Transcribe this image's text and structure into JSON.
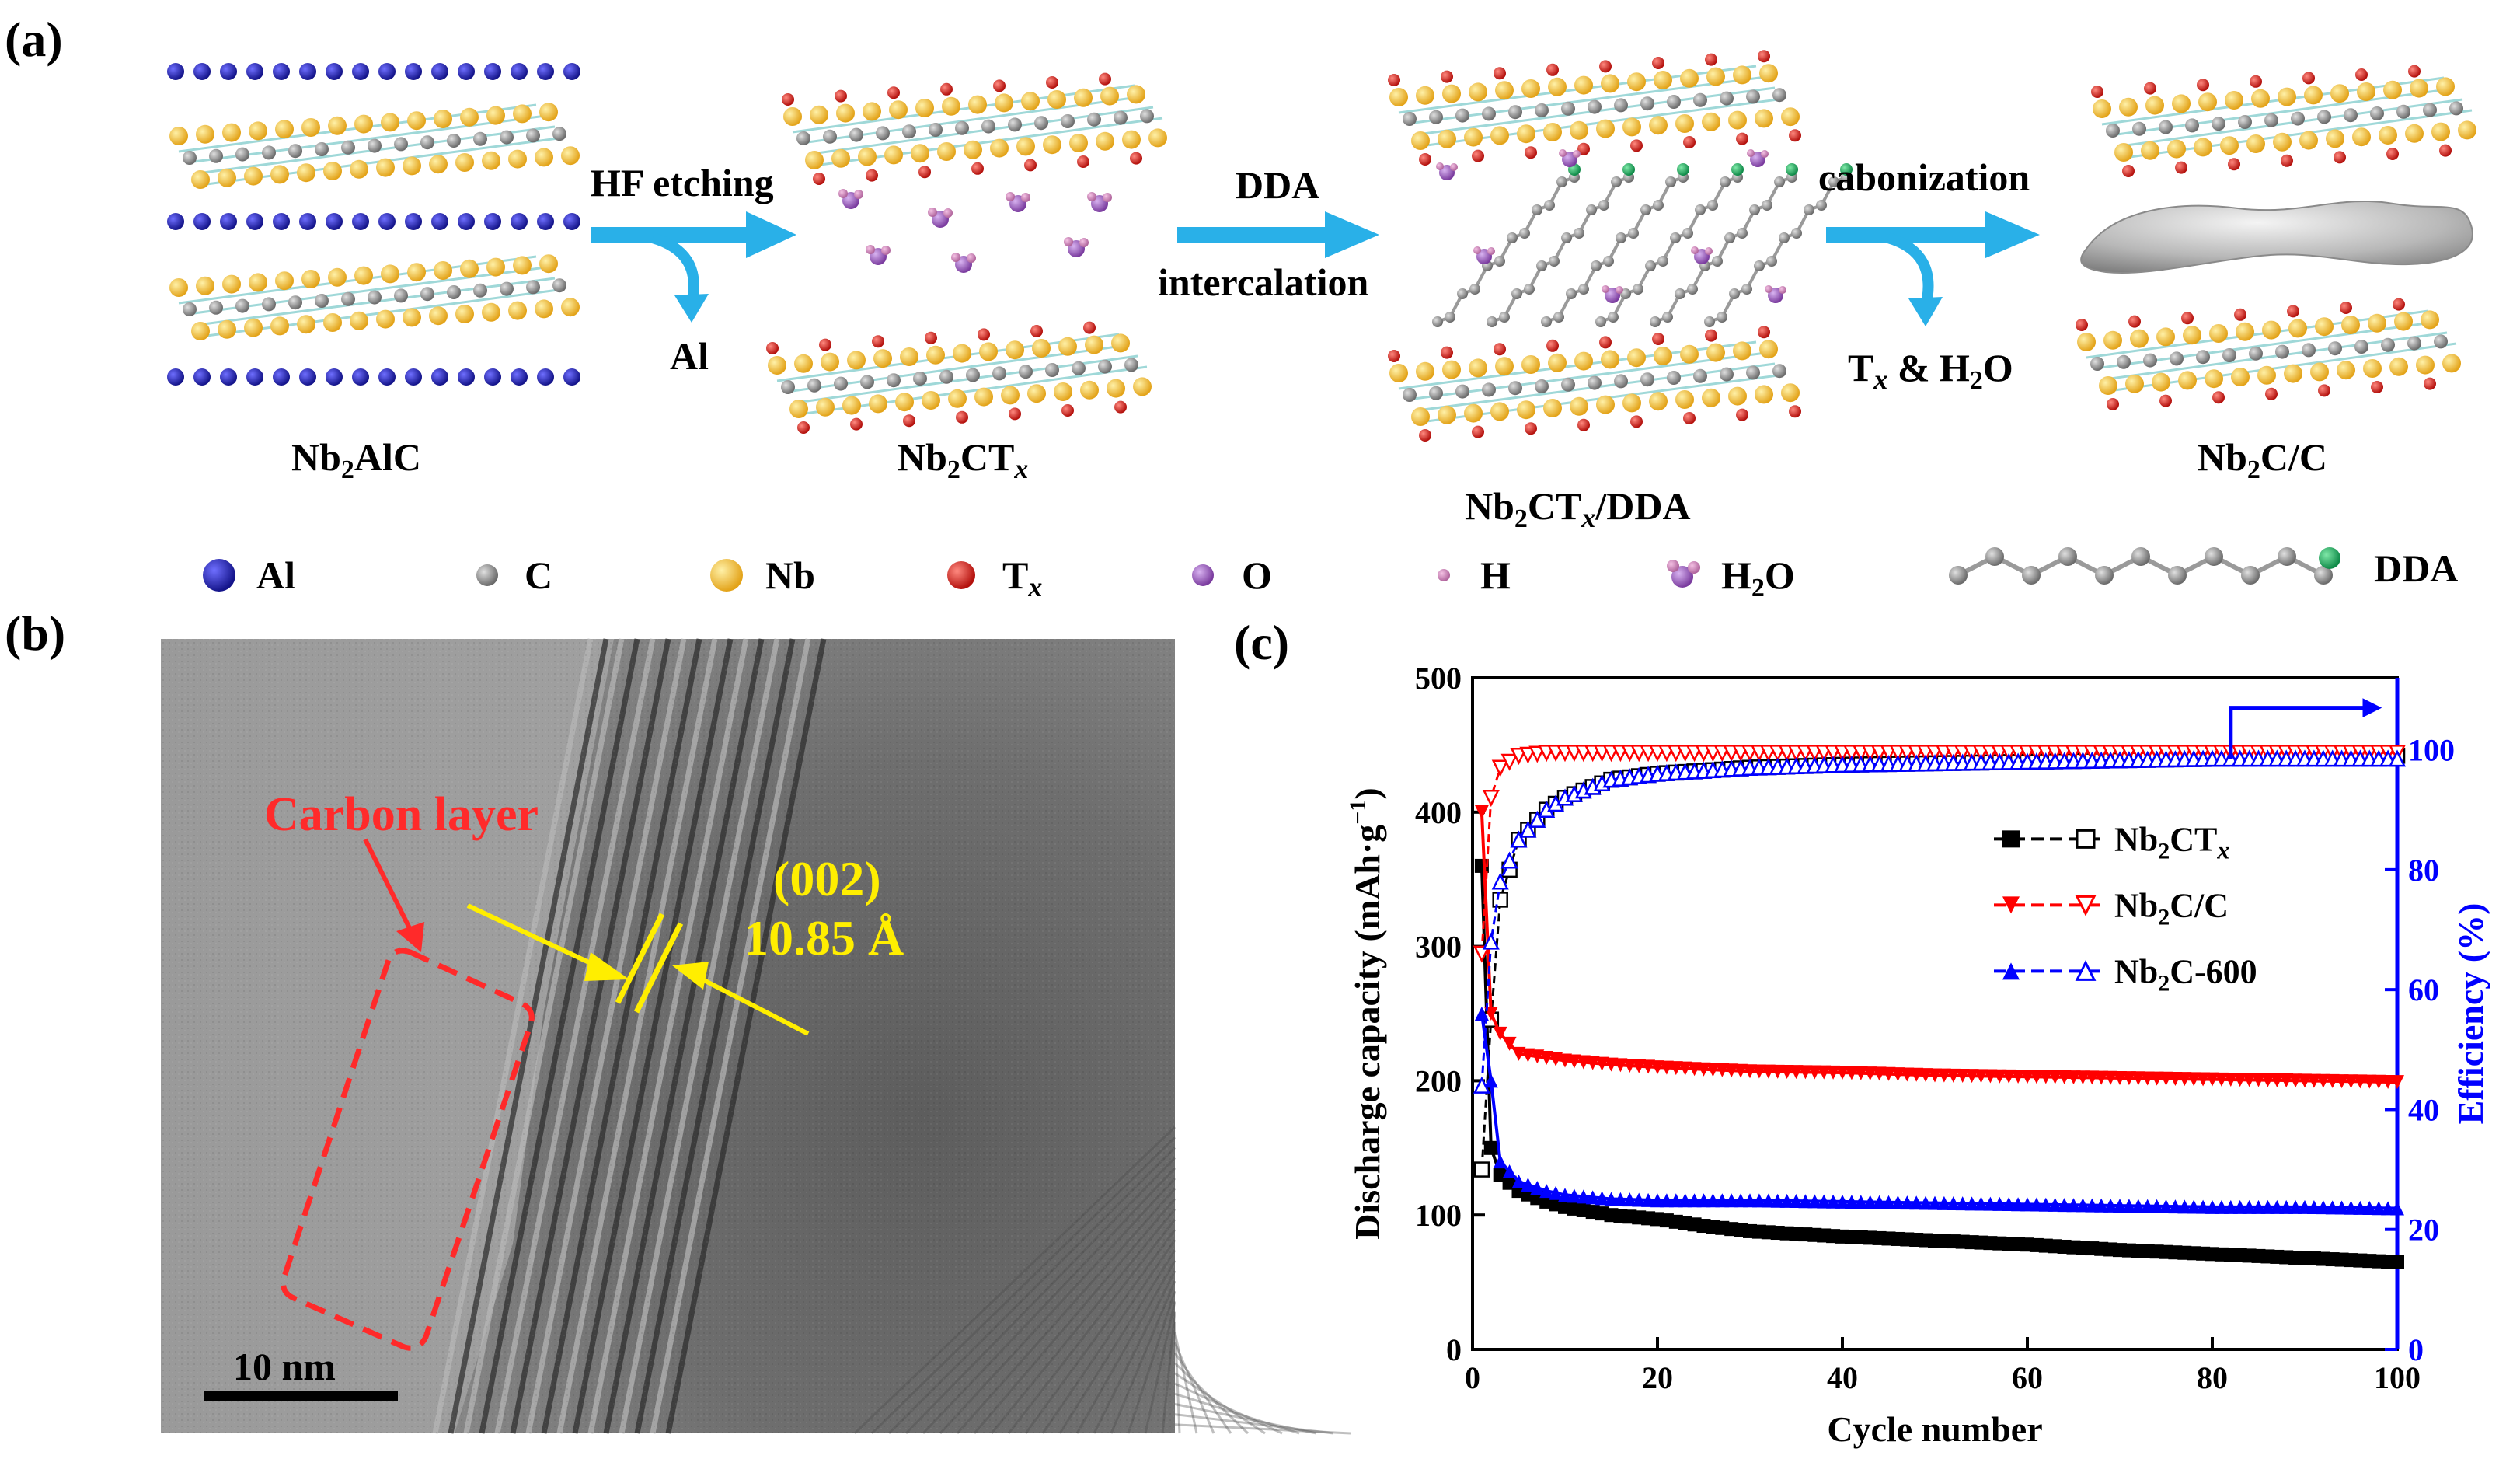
{
  "panels": {
    "a": "(a)",
    "b": "(b)",
    "c": "(c)"
  },
  "schematic": {
    "materials": [
      {
        "name": "Nb2AlC",
        "base": "Nb",
        "sub": "2",
        "rest": "AlC"
      },
      {
        "name": "Nb2CTx",
        "base": "Nb",
        "sub": "2",
        "rest": "CT",
        "italic": "x"
      },
      {
        "name": "Nb2CTx/DDA",
        "base": "Nb",
        "sub": "2",
        "rest": "CT",
        "italic": "x",
        "tail": "/DDA"
      },
      {
        "name": "Nb2C/C",
        "base": "Nb",
        "sub": "2",
        "rest": "C/C"
      }
    ],
    "steps": {
      "hf": "HF etching",
      "al": "Al",
      "dda": "DDA",
      "intercalation": "intercalation",
      "carbonization": "cabonization",
      "tx_h2o_prefix": "T",
      "tx_h2o_italic": "x",
      "tx_h2o_suffix": " & H",
      "tx_h2o_sub": "2",
      "tx_h2o_end": "O"
    },
    "legend": {
      "al": "Al",
      "c": "C",
      "nb": "Nb",
      "tx_base": "T",
      "tx_italic": "x",
      "o": "O",
      "h": "H",
      "h2o_base": "H",
      "h2o_sub": "2",
      "h2o_end": "O",
      "dda": "DDA"
    },
    "colors": {
      "al": "#1a1aa0",
      "c": "#8a8a8a",
      "nb": "#f3b52a",
      "tx": "#d8201c",
      "o": "#9b59b6",
      "h": "#c77ab0",
      "arrow": "#29b0e8",
      "bond": "#9fd8d8"
    }
  },
  "tem": {
    "carbon_layer": "Carbon layer",
    "plane": "(002)",
    "spacing": "10.85 Å",
    "scale_bar": "10 nm",
    "label_color": "#ff2a2a",
    "annot_color": "#ffee00"
  },
  "chart_data": {
    "type": "line",
    "title": "",
    "xlabel": "Cycle number",
    "ylabel": "Discharge capacity (mAh·g⁻¹)",
    "ylabel_parts": {
      "main": "Discharge capacity (mAh·g",
      "sup": "−1",
      "end": ")"
    },
    "y2label": "Efficiency (%)",
    "xlim": [
      0,
      100
    ],
    "ylim": [
      0,
      500
    ],
    "y2lim": [
      0,
      112
    ],
    "xticks": [
      0,
      20,
      40,
      60,
      80,
      100
    ],
    "yticks": [
      0,
      100,
      200,
      300,
      400,
      500
    ],
    "y2ticks": [
      0,
      20,
      40,
      60,
      80,
      100
    ],
    "legend_position": "center-right",
    "series": [
      {
        "name": "Nb2CTx",
        "label_parts": {
          "base": "Nb",
          "sub": "2",
          "rest": "CT",
          "italic": "x"
        },
        "color": "#000000",
        "capacity_points": [
          [
            1,
            360
          ],
          [
            2,
            150
          ],
          [
            3,
            130
          ],
          [
            5,
            118
          ],
          [
            8,
            110
          ],
          [
            10,
            106
          ],
          [
            15,
            100
          ],
          [
            20,
            97
          ],
          [
            25,
            92
          ],
          [
            30,
            88
          ],
          [
            35,
            86
          ],
          [
            40,
            84
          ],
          [
            50,
            81
          ],
          [
            60,
            78
          ],
          [
            70,
            74
          ],
          [
            80,
            71
          ],
          [
            90,
            68
          ],
          [
            100,
            65
          ]
        ],
        "efficiency_points": [
          [
            1,
            30
          ],
          [
            2,
            55
          ],
          [
            3,
            75
          ],
          [
            5,
            85
          ],
          [
            8,
            90
          ],
          [
            10,
            92
          ],
          [
            15,
            95
          ],
          [
            20,
            96
          ],
          [
            30,
            97
          ],
          [
            40,
            97.5
          ],
          [
            60,
            98
          ],
          [
            80,
            98.5
          ],
          [
            100,
            99
          ]
        ]
      },
      {
        "name": "Nb2C/C",
        "label_parts": {
          "base": "Nb",
          "sub": "2",
          "rest": "C/C"
        },
        "color": "#ff0000",
        "capacity_points": [
          [
            1,
            400
          ],
          [
            2,
            250
          ],
          [
            3,
            235
          ],
          [
            5,
            220
          ],
          [
            8,
            217
          ],
          [
            10,
            215
          ],
          [
            15,
            212
          ],
          [
            20,
            210
          ],
          [
            30,
            207
          ],
          [
            40,
            206
          ],
          [
            50,
            204
          ],
          [
            60,
            203
          ],
          [
            70,
            202
          ],
          [
            80,
            201
          ],
          [
            90,
            200
          ],
          [
            100,
            199
          ]
        ],
        "efficiency_points": [
          [
            1,
            66
          ],
          [
            2,
            92
          ],
          [
            3,
            97
          ],
          [
            5,
            99
          ],
          [
            8,
            99.5
          ],
          [
            10,
            99.5
          ],
          [
            20,
            99.5
          ],
          [
            40,
            99.5
          ],
          [
            60,
            99.5
          ],
          [
            80,
            99.5
          ],
          [
            100,
            99.5
          ]
        ]
      },
      {
        "name": "Nb2C-600",
        "label_parts": {
          "base": "Nb",
          "sub": "2",
          "rest": "C-600"
        },
        "color": "#0000ff",
        "capacity_points": [
          [
            1,
            250
          ],
          [
            2,
            200
          ],
          [
            3,
            140
          ],
          [
            5,
            125
          ],
          [
            8,
            118
          ],
          [
            10,
            115
          ],
          [
            15,
            112
          ],
          [
            20,
            111
          ],
          [
            30,
            111
          ],
          [
            40,
            110
          ],
          [
            50,
            109
          ],
          [
            60,
            108
          ],
          [
            70,
            107
          ],
          [
            80,
            106
          ],
          [
            90,
            106
          ],
          [
            100,
            105
          ]
        ],
        "efficiency_points": [
          [
            1,
            44
          ],
          [
            2,
            68
          ],
          [
            3,
            78
          ],
          [
            5,
            85
          ],
          [
            8,
            90
          ],
          [
            10,
            92
          ],
          [
            15,
            95
          ],
          [
            20,
            96
          ],
          [
            30,
            97
          ],
          [
            40,
            97.5
          ],
          [
            60,
            98
          ],
          [
            80,
            98.5
          ],
          [
            100,
            98.5
          ]
        ]
      }
    ]
  }
}
